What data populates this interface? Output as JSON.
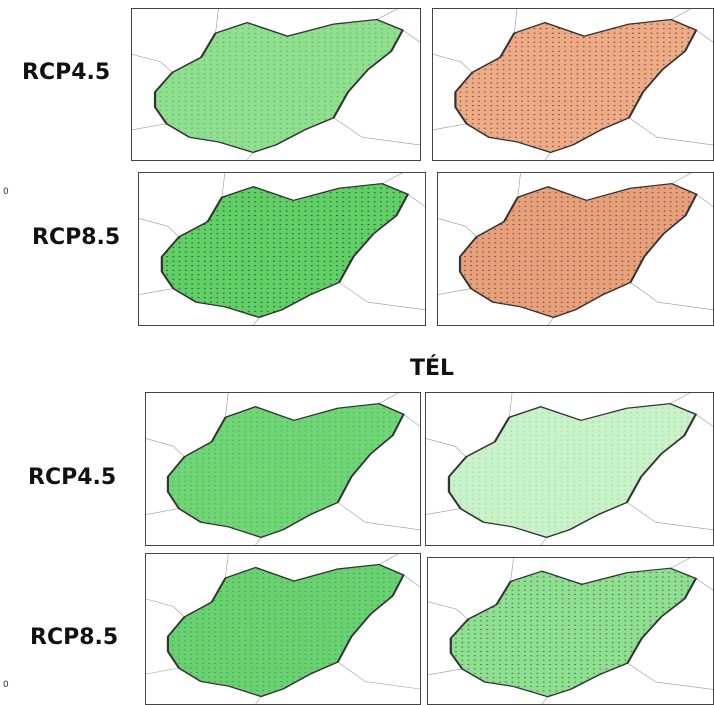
{
  "top_rows": [
    {
      "label": "RCP4.5"
    },
    {
      "label": "RCP8.5"
    }
  ],
  "section_title": "TÉL",
  "bottom_rows": [
    {
      "label": "RCP4.5"
    },
    {
      "label": "RCP8.5"
    }
  ],
  "edge_marks": [
    "0",
    "0"
  ]
}
